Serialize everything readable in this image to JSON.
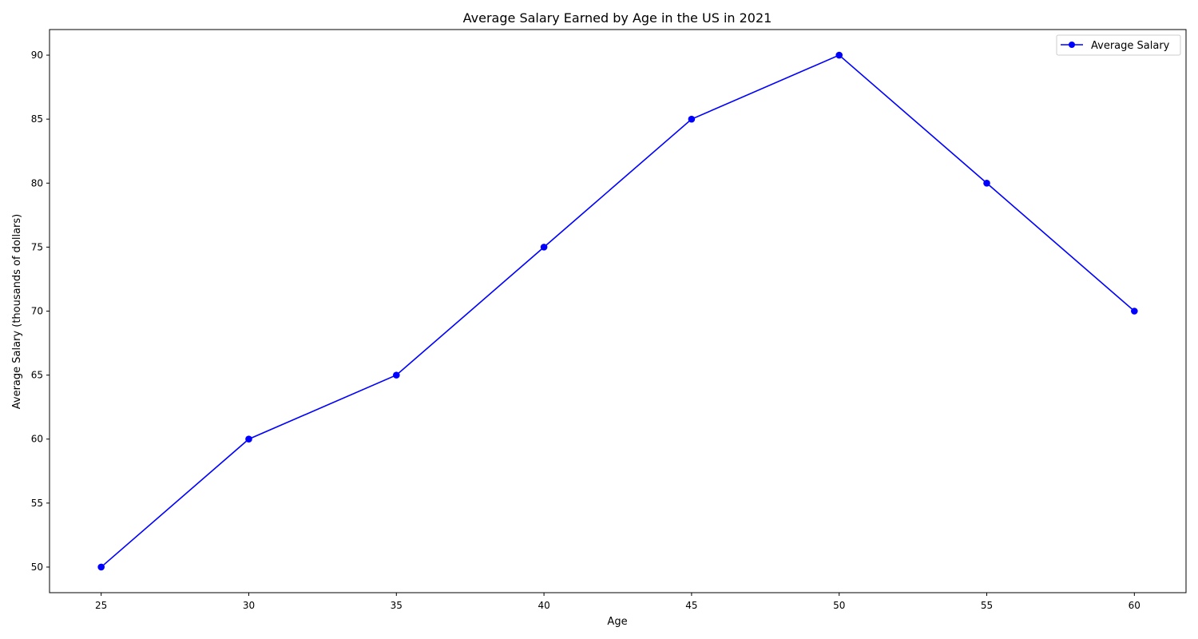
{
  "chart_data": {
    "type": "line",
    "title": "Average Salary Earned by Age in the US in 2021",
    "xlabel": "Age",
    "ylabel": "Average Salary (thousands of dollars)",
    "x": [
      25,
      30,
      35,
      40,
      45,
      50,
      55,
      60
    ],
    "series": [
      {
        "name": "Average Salary",
        "values": [
          50,
          60,
          65,
          75,
          85,
          90,
          80,
          70
        ],
        "color": "#0000ff",
        "marker": "circle"
      }
    ],
    "xticks": [
      25,
      30,
      35,
      40,
      45,
      50,
      55,
      60
    ],
    "yticks": [
      50,
      55,
      60,
      65,
      70,
      75,
      80,
      85,
      90
    ],
    "xlim": [
      23.25,
      61.75
    ],
    "ylim": [
      48,
      92
    ],
    "grid": false,
    "legend": "top-right"
  }
}
